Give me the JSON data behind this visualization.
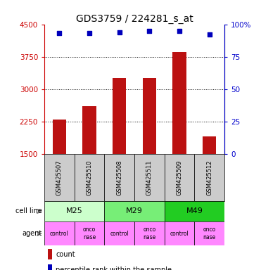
{
  "title": "GDS3759 / 224281_s_at",
  "samples": [
    "GSM425507",
    "GSM425510",
    "GSM425508",
    "GSM425511",
    "GSM425509",
    "GSM425512"
  ],
  "counts": [
    2300,
    2600,
    3250,
    3250,
    3850,
    1900
  ],
  "percentiles": [
    93,
    93,
    94,
    95,
    95,
    92
  ],
  "ylim_left": [
    1500,
    4500
  ],
  "ylim_right": [
    0,
    100
  ],
  "yticks_left": [
    1500,
    2250,
    3000,
    3750,
    4500
  ],
  "yticks_right": [
    0,
    25,
    50,
    75,
    100
  ],
  "bar_color": "#bb1111",
  "dot_color": "#0000bb",
  "cell_lines": [
    {
      "label": "M25",
      "cols": [
        0,
        1
      ],
      "color": "#ccffcc"
    },
    {
      "label": "M29",
      "cols": [
        2,
        3
      ],
      "color": "#77ee77"
    },
    {
      "label": "M49",
      "cols": [
        4,
        5
      ],
      "color": "#22cc22"
    }
  ],
  "agents": [
    "control",
    "onconase",
    "control",
    "onconase",
    "control",
    "onconase"
  ],
  "agent_color": "#ff88ff",
  "sample_bg_color": "#cccccc",
  "grid_color": "#555555",
  "left_axis_color": "#cc0000",
  "right_axis_color": "#0000cc",
  "legend_count_color": "#bb1111",
  "legend_pct_color": "#0000bb"
}
